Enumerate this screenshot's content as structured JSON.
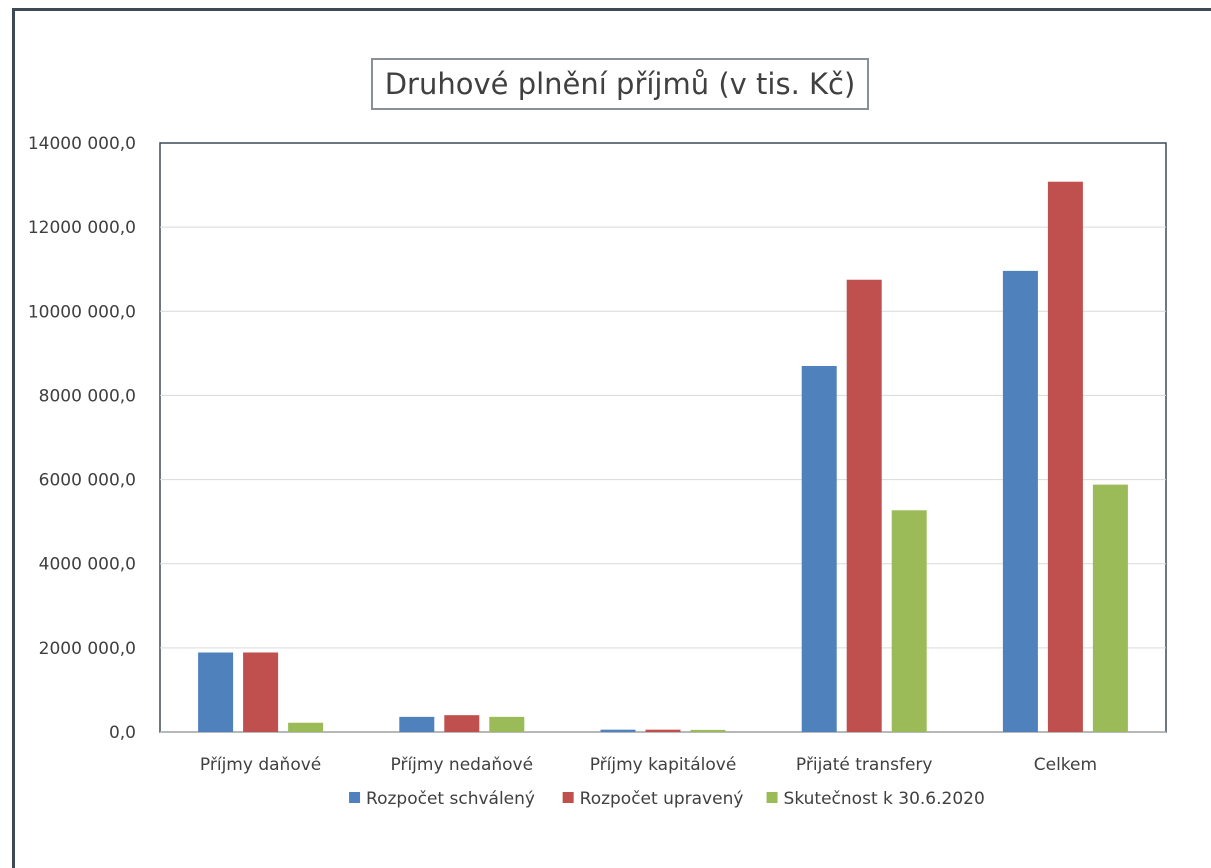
{
  "chart_data": {
    "type": "bar",
    "title": "Druhové plnění příjmů (v tis. Kč)",
    "categories": [
      "Příjmy daňové",
      "Příjmy nedaňové",
      "Příjmy kapitálové",
      "Přijaté transfery",
      "Celkem"
    ],
    "series": [
      {
        "name": "Rozpočet schválený",
        "color": "#4f81bd",
        "values": [
          1890000,
          360000,
          55000,
          8700000,
          10960000
        ]
      },
      {
        "name": "Rozpočet upravený",
        "color": "#c0504d",
        "values": [
          1890000,
          400000,
          55000,
          10750000,
          13080000
        ]
      },
      {
        "name": "Skutečnost k 30.6.2020",
        "color": "#9bbb59",
        "values": [
          220000,
          360000,
          50000,
          5270000,
          5880000
        ]
      }
    ],
    "yticks": [
      "0,0",
      "2000 000,0",
      "4000 000,0",
      "6000 000,0",
      "8000 000,0",
      "10000 000,0",
      "12000 000,0",
      "14000 000,0"
    ],
    "ylim": [
      0,
      14000000
    ],
    "xlabel": "",
    "ylabel": "",
    "grid": true,
    "legend_position": "bottom"
  }
}
